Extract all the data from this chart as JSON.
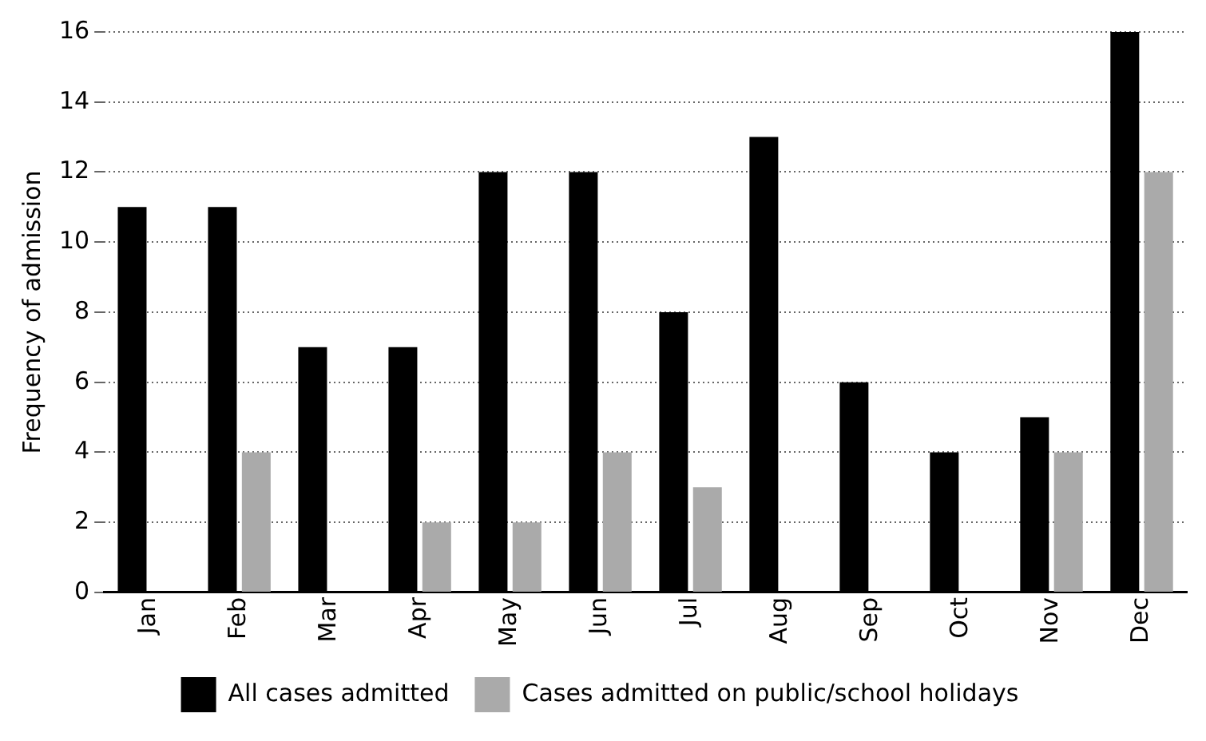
{
  "chart_data": {
    "type": "bar",
    "ylabel": "Frequency of admission",
    "categories": [
      "Jan",
      "Feb",
      "Mar",
      "Apr",
      "May",
      "Jun",
      "Jul",
      "Aug",
      "Sep",
      "Oct",
      "Nov",
      "Dec"
    ],
    "series": [
      {
        "name": "All cases admitted",
        "color": "#000000",
        "values": [
          11,
          11,
          7,
          7,
          12,
          12,
          8,
          13,
          6,
          4,
          5,
          16
        ]
      },
      {
        "name": "Cases admitted on public/school holidays",
        "color": "#aaaaaa",
        "values": [
          null,
          4,
          null,
          2,
          2,
          4,
          3,
          null,
          null,
          null,
          4,
          12
        ]
      }
    ],
    "ylim": [
      0,
      16
    ],
    "yticks": [
      0,
      2,
      4,
      6,
      8,
      10,
      12,
      14,
      16
    ],
    "grid": "y",
    "line_style": "dotted",
    "legend": "bottom"
  }
}
